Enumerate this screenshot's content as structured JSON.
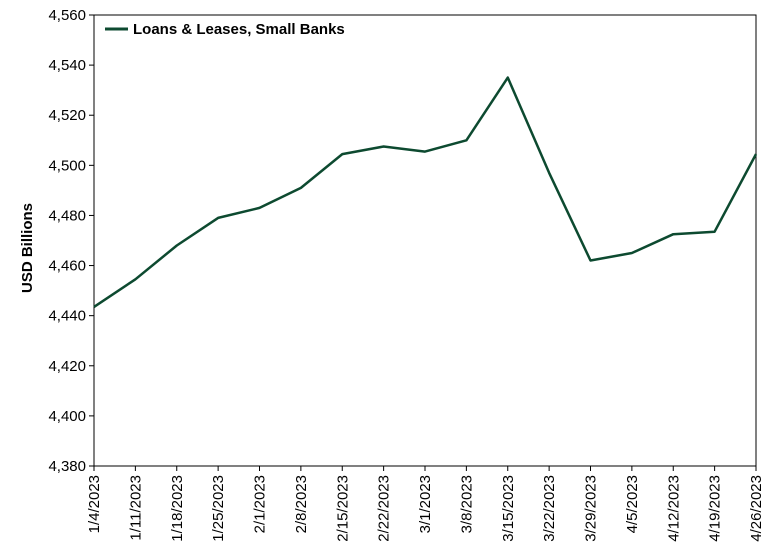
{
  "chart_data": {
    "type": "line",
    "ylabel": "USD Billions",
    "xlabel": "",
    "title": "",
    "ylim": [
      4380,
      4560
    ],
    "y_ticks": [
      4380,
      4400,
      4420,
      4440,
      4460,
      4480,
      4500,
      4520,
      4540,
      4560
    ],
    "y_tick_labels": [
      "4,380",
      "4,400",
      "4,420",
      "4,440",
      "4,460",
      "4,480",
      "4,500",
      "4,520",
      "4,540",
      "4,560"
    ],
    "categories": [
      "1/4/2023",
      "1/11/2023",
      "1/18/2023",
      "1/25/2023",
      "2/1/2023",
      "2/8/2023",
      "2/15/2023",
      "2/22/2023",
      "3/1/2023",
      "3/8/2023",
      "3/15/2023",
      "3/22/2023",
      "3/29/2023",
      "4/5/2023",
      "4/12/2023",
      "4/19/2023",
      "4/26/2023"
    ],
    "series": [
      {
        "name": "Loans & Leases, Small Banks",
        "color": "#0d4a30",
        "values": [
          4443.5,
          4454.5,
          4468,
          4479,
          4483,
          4491,
          4504.5,
          4507.5,
          4505.5,
          4510,
          4535,
          4497,
          4462,
          4465,
          4472.5,
          4473.5,
          4504.5
        ]
      }
    ],
    "grid": false,
    "legend": "top-left"
  }
}
